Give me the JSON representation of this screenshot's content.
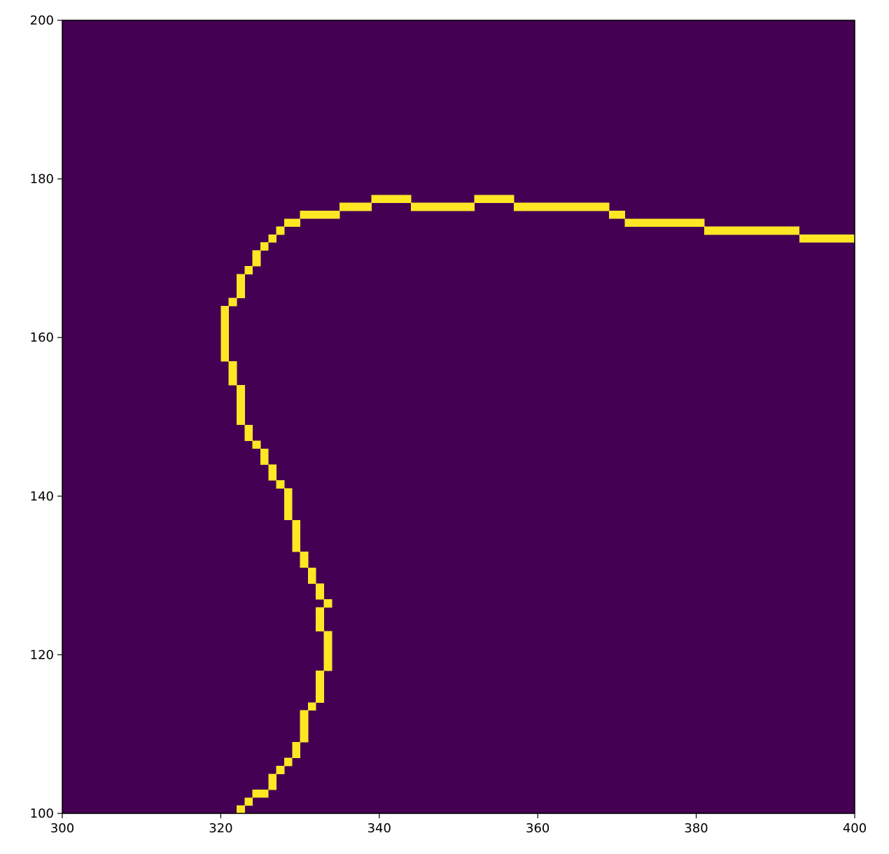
{
  "chart_data": {
    "type": "heatmap",
    "title": "",
    "xlabel": "",
    "ylabel": "",
    "xlim": [
      300,
      400
    ],
    "ylim": [
      100,
      200
    ],
    "xticks": [
      300,
      320,
      340,
      360,
      380,
      400
    ],
    "yticks": [
      100,
      120,
      140,
      160,
      180,
      200
    ],
    "colormap": "viridis",
    "values_domain": [
      0,
      1
    ],
    "colors": {
      "background_value_0": "#440154",
      "contour_value_1": "#fde725"
    },
    "description": "Binary image: value 1 marks a one-pixel-wide contour, all other pixels value 0",
    "contour_pixels": [
      [
        322,
        100
      ],
      [
        323,
        101
      ],
      [
        324,
        102
      ],
      [
        325,
        102
      ],
      [
        326,
        103
      ],
      [
        326,
        104
      ],
      [
        327,
        105
      ],
      [
        328,
        106
      ],
      [
        329,
        107
      ],
      [
        329,
        108
      ],
      [
        330,
        109
      ],
      [
        330,
        110
      ],
      [
        330,
        111
      ],
      [
        330,
        112
      ],
      [
        331,
        113
      ],
      [
        332,
        114
      ],
      [
        332,
        115
      ],
      [
        332,
        116
      ],
      [
        332,
        117
      ],
      [
        333,
        118
      ],
      [
        333,
        119
      ],
      [
        333,
        120
      ],
      [
        333,
        121
      ],
      [
        333,
        122
      ],
      [
        332,
        123
      ],
      [
        332,
        124
      ],
      [
        332,
        125
      ],
      [
        333,
        126
      ],
      [
        332,
        127
      ],
      [
        332,
        128
      ],
      [
        331,
        129
      ],
      [
        331,
        130
      ],
      [
        330,
        131
      ],
      [
        330,
        132
      ],
      [
        329,
        133
      ],
      [
        329,
        134
      ],
      [
        329,
        135
      ],
      [
        329,
        136
      ],
      [
        328,
        137
      ],
      [
        328,
        138
      ],
      [
        328,
        139
      ],
      [
        328,
        140
      ],
      [
        327,
        141
      ],
      [
        326,
        142
      ],
      [
        326,
        143
      ],
      [
        325,
        144
      ],
      [
        325,
        145
      ],
      [
        324,
        146
      ],
      [
        323,
        147
      ],
      [
        323,
        148
      ],
      [
        322,
        149
      ],
      [
        322,
        150
      ],
      [
        322,
        151
      ],
      [
        322,
        152
      ],
      [
        322,
        153
      ],
      [
        321,
        154
      ],
      [
        321,
        155
      ],
      [
        321,
        156
      ],
      [
        320,
        157
      ],
      [
        320,
        158
      ],
      [
        320,
        159
      ],
      [
        320,
        160
      ],
      [
        320,
        161
      ],
      [
        320,
        162
      ],
      [
        320,
        163
      ],
      [
        321,
        164
      ],
      [
        322,
        165
      ],
      [
        322,
        166
      ],
      [
        322,
        167
      ],
      [
        323,
        168
      ],
      [
        324,
        169
      ],
      [
        324,
        170
      ],
      [
        325,
        171
      ],
      [
        326,
        172
      ],
      [
        327,
        173
      ],
      [
        328,
        174
      ],
      [
        329,
        174
      ],
      [
        330,
        175
      ],
      [
        331,
        175
      ],
      [
        332,
        175
      ],
      [
        333,
        175
      ],
      [
        334,
        175
      ],
      [
        335,
        176
      ],
      [
        336,
        176
      ],
      [
        337,
        176
      ],
      [
        338,
        176
      ],
      [
        339,
        177
      ],
      [
        340,
        177
      ],
      [
        341,
        177
      ],
      [
        342,
        177
      ],
      [
        343,
        177
      ],
      [
        344,
        176
      ],
      [
        345,
        176
      ],
      [
        346,
        176
      ],
      [
        347,
        176
      ],
      [
        348,
        176
      ],
      [
        349,
        176
      ],
      [
        350,
        176
      ],
      [
        351,
        176
      ],
      [
        352,
        177
      ],
      [
        353,
        177
      ],
      [
        354,
        177
      ],
      [
        355,
        177
      ],
      [
        356,
        177
      ],
      [
        357,
        176
      ],
      [
        358,
        176
      ],
      [
        359,
        176
      ],
      [
        360,
        176
      ],
      [
        361,
        176
      ],
      [
        362,
        176
      ],
      [
        363,
        176
      ],
      [
        364,
        176
      ],
      [
        365,
        176
      ],
      [
        366,
        176
      ],
      [
        367,
        176
      ],
      [
        368,
        176
      ],
      [
        369,
        175
      ],
      [
        370,
        175
      ],
      [
        371,
        174
      ],
      [
        372,
        174
      ],
      [
        373,
        174
      ],
      [
        374,
        174
      ],
      [
        375,
        174
      ],
      [
        376,
        174
      ],
      [
        377,
        174
      ],
      [
        378,
        174
      ],
      [
        379,
        174
      ],
      [
        380,
        174
      ],
      [
        381,
        173
      ],
      [
        382,
        173
      ],
      [
        383,
        173
      ],
      [
        384,
        173
      ],
      [
        385,
        173
      ],
      [
        386,
        173
      ],
      [
        387,
        173
      ],
      [
        388,
        173
      ],
      [
        389,
        173
      ],
      [
        390,
        173
      ],
      [
        391,
        173
      ],
      [
        392,
        173
      ],
      [
        393,
        172
      ],
      [
        394,
        172
      ],
      [
        395,
        172
      ],
      [
        396,
        172
      ],
      [
        397,
        172
      ],
      [
        398,
        172
      ],
      [
        399,
        172
      ]
    ]
  }
}
